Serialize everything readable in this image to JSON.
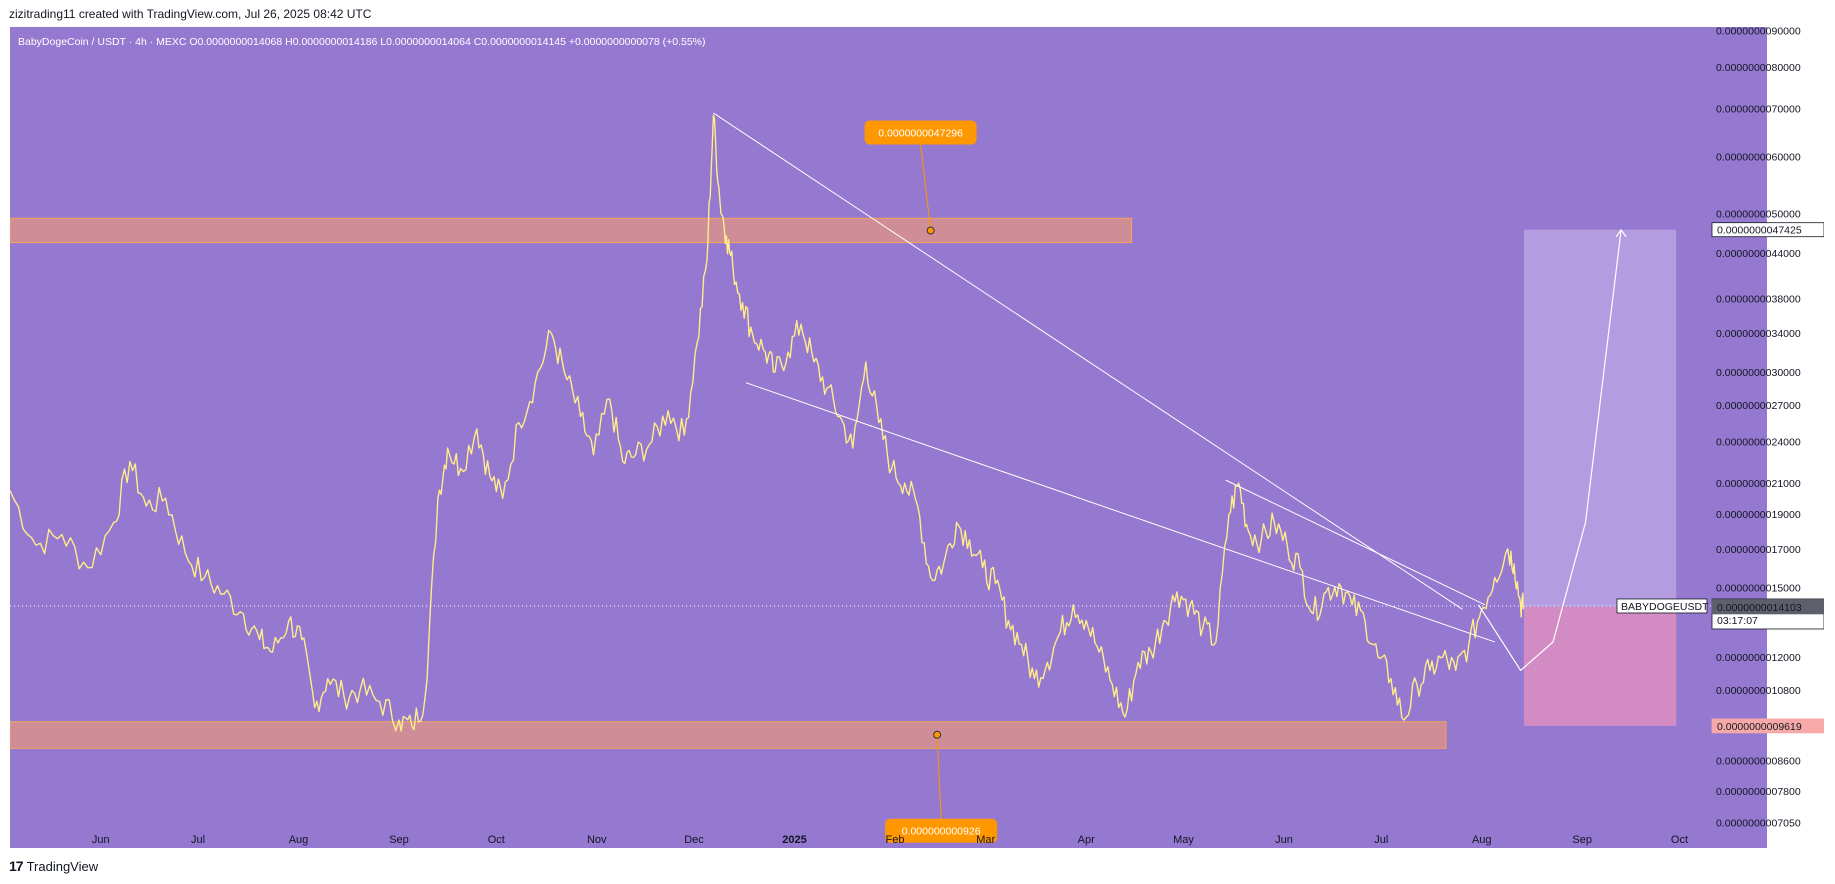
{
  "header": {
    "credit": "zizitrading11 created with TradingView.com, Jul 26, 2025 08:42 UTC"
  },
  "footer": {
    "logo_mark": "17",
    "logo_text": "TradingView"
  },
  "colors": {
    "background": "#9578d0",
    "candles": "#ffec8a",
    "zone_fill": "#e8977f",
    "zone_border": "#f5a35a",
    "target_fill": "#b8a3e3",
    "stop_fill": "#de8fc1",
    "callout_bg": "#ff9800",
    "trendline": "#ffffff"
  },
  "chart_data": {
    "type": "line",
    "title": "BabyDogeCoin / USDT · 4h · MEXC",
    "legend": "BabyDogeCoin / USDT · 4h · MEXC  O0.0000000014068  H0.0000000014186  L0.0000000014064  C0.0000000014145  +0.0000000000078 (+0.55%)",
    "ohlc": {
      "open": "0.0000000014068",
      "high": "0.0000000014186",
      "low": "0.0000000014064",
      "close": "0.0000000014145",
      "change": "+0.0000000000078",
      "change_pct": "+0.55%"
    },
    "scale": "log",
    "ylim": [
      6.95e-10,
      9.1e-09
    ],
    "y_ticks": [
      "0.0000000090000",
      "0.0000000080000",
      "0.0000000070000",
      "0.0000000060000",
      "0.0000000050000",
      "0.0000000044000",
      "0.0000000038000",
      "0.0000000034000",
      "0.0000000030000",
      "0.0000000027000",
      "0.0000000024000",
      "0.0000000021000",
      "0.0000000019000",
      "0.0000000017000",
      "0.0000000015000",
      "0.0000000012000",
      "0.0000000010800",
      "0.0000000008600",
      "0.0000000007800",
      "0.0000000007050"
    ],
    "y_tick_values": [
      9e-09,
      8e-09,
      7e-09,
      6e-09,
      5e-09,
      4.4e-09,
      3.8e-09,
      3.4e-09,
      3e-09,
      2.7e-09,
      2.4e-09,
      2.1e-09,
      1.9e-09,
      1.7e-09,
      1.5e-09,
      1.2e-09,
      1.08e-09,
      8.6e-10,
      7.8e-10,
      7.05e-10
    ],
    "x_ticks": [
      "Jun",
      "Jul",
      "Aug",
      "Sep",
      "Oct",
      "Nov",
      "Dec",
      "2025",
      "Feb",
      "Mar",
      "Apr",
      "May",
      "Jun",
      "Jul",
      "Aug",
      "Sep",
      "Oct"
    ],
    "x_tick_days": [
      0,
      30,
      61,
      92,
      122,
      153,
      183,
      214,
      245,
      273,
      304,
      334,
      365,
      395,
      426,
      457,
      487
    ],
    "xlim_days": [
      -28,
      514
    ],
    "series": [
      {
        "name": "BABYDOGEUSDT",
        "points": [
          [
            -28,
            2.05e-09
          ],
          [
            -20,
            1.72e-09
          ],
          [
            -12,
            1.78e-09
          ],
          [
            -4,
            1.6e-09
          ],
          [
            4,
            1.85e-09
          ],
          [
            9,
            2.25e-09
          ],
          [
            14,
            1.95e-09
          ],
          [
            20,
            2e-09
          ],
          [
            26,
            1.68e-09
          ],
          [
            32,
            1.55e-09
          ],
          [
            38,
            1.47e-09
          ],
          [
            44,
            1.38e-09
          ],
          [
            49,
            1.27e-09
          ],
          [
            53,
            1.22e-09
          ],
          [
            58,
            1.35e-09
          ],
          [
            62,
            1.27e-09
          ],
          [
            66,
            1.02e-09
          ],
          [
            70,
            1.12e-09
          ],
          [
            75,
            1.06e-09
          ],
          [
            80,
            1.08e-09
          ],
          [
            86,
            1.04e-09
          ],
          [
            92,
            9.8e-10
          ],
          [
            96,
            9.6e-10
          ],
          [
            100,
            1.05e-09
          ],
          [
            104,
            2e-09
          ],
          [
            107,
            2.35e-09
          ],
          [
            111,
            2.2e-09
          ],
          [
            116,
            2.5e-09
          ],
          [
            120,
            2.15e-09
          ],
          [
            124,
            2e-09
          ],
          [
            129,
            2.55e-09
          ],
          [
            134,
            2.9e-09
          ],
          [
            139,
            3.4e-09
          ],
          [
            143,
            3e-09
          ],
          [
            148,
            2.6e-09
          ],
          [
            152,
            2.3e-09
          ],
          [
            157,
            2.75e-09
          ],
          [
            161,
            2.25e-09
          ],
          [
            165,
            2.3e-09
          ],
          [
            170,
            2.4e-09
          ],
          [
            175,
            2.65e-09
          ],
          [
            180,
            2.45e-09
          ],
          [
            184,
            3.3e-09
          ],
          [
            187,
            4.3e-09
          ],
          [
            189,
            6.85e-09
          ],
          [
            191,
            5.2e-09
          ],
          [
            193,
            4.65e-09
          ],
          [
            195,
            4.2e-09
          ],
          [
            198,
            3.75e-09
          ],
          [
            201,
            3.4e-09
          ],
          [
            205,
            3.2e-09
          ],
          [
            208,
            3e-09
          ],
          [
            212,
            3.2e-09
          ],
          [
            216,
            3.5e-09
          ],
          [
            220,
            3.1e-09
          ],
          [
            224,
            2.85e-09
          ],
          [
            228,
            2.6e-09
          ],
          [
            232,
            2.35e-09
          ],
          [
            236,
            3.1e-09
          ],
          [
            240,
            2.55e-09
          ],
          [
            244,
            2.2e-09
          ],
          [
            248,
            2.1e-09
          ],
          [
            252,
            1.95e-09
          ],
          [
            256,
            1.55e-09
          ],
          [
            260,
            1.62e-09
          ],
          [
            264,
            1.85e-09
          ],
          [
            268,
            1.75e-09
          ],
          [
            272,
            1.6e-09
          ],
          [
            276,
            1.52e-09
          ],
          [
            280,
            1.35e-09
          ],
          [
            284,
            1.25e-09
          ],
          [
            288,
            1.12e-09
          ],
          [
            292,
            1.18e-09
          ],
          [
            296,
            1.3e-09
          ],
          [
            300,
            1.42e-09
          ],
          [
            304,
            1.35e-09
          ],
          [
            308,
            1.22e-09
          ],
          [
            312,
            1.1e-09
          ],
          [
            316,
            9.9e-10
          ],
          [
            320,
            1.18e-09
          ],
          [
            324,
            1.22e-09
          ],
          [
            328,
            1.35e-09
          ],
          [
            332,
            1.48e-09
          ],
          [
            336,
            1.42e-09
          ],
          [
            340,
            1.32e-09
          ],
          [
            344,
            1.26e-09
          ],
          [
            348,
            1.9e-09
          ],
          [
            351,
            2.1e-09
          ],
          [
            354,
            1.8e-09
          ],
          [
            358,
            1.75e-09
          ],
          [
            362,
            1.85e-09
          ],
          [
            366,
            1.72e-09
          ],
          [
            370,
            1.6e-09
          ],
          [
            374,
            1.38e-09
          ],
          [
            378,
            1.48e-09
          ],
          [
            382,
            1.52e-09
          ],
          [
            386,
            1.42e-09
          ],
          [
            390,
            1.35e-09
          ],
          [
            394,
            1.2e-09
          ],
          [
            398,
            1.12e-09
          ],
          [
            402,
            9.8e-10
          ],
          [
            406,
            1.1e-09
          ],
          [
            410,
            1.15e-09
          ],
          [
            414,
            1.2e-09
          ],
          [
            418,
            1.15e-09
          ],
          [
            422,
            1.25e-09
          ],
          [
            426,
            1.4e-09
          ],
          [
            430,
            1.55e-09
          ],
          [
            434,
            1.7e-09
          ],
          [
            436,
            1.62e-09
          ],
          [
            438,
            1.42e-09
          ],
          [
            439,
            1.4145e-09
          ]
        ]
      }
    ],
    "zones": [
      {
        "label": "resistance",
        "from_day": -28,
        "to_day": 318,
        "low": 4.55e-09,
        "high": 4.92e-09
      },
      {
        "label": "support",
        "from_day": -28,
        "to_day": 415,
        "low": 8.95e-10,
        "high": 9.75e-10
      }
    ],
    "trendlines": [
      {
        "points": [
          [
            189,
            6.9e-09
          ],
          [
            420,
            1.4e-09
          ]
        ]
      },
      {
        "points": [
          [
            199,
            2.9e-09
          ],
          [
            430,
            1.26e-09
          ]
        ]
      },
      {
        "points": [
          [
            347,
            2.12e-09
          ],
          [
            427,
            1.42e-09
          ]
        ]
      }
    ],
    "projection_arrow": {
      "points": [
        [
          425,
          1.42e-09
        ],
        [
          438,
          1.15e-09
        ],
        [
          448,
          1.26e-09
        ],
        [
          458,
          1.85e-09
        ],
        [
          469,
          4.74e-09
        ]
      ]
    },
    "position": {
      "from_day": 439,
      "to_day": 486,
      "entry": 1.4103e-09,
      "target": 4.7425e-09,
      "stop": 9.619e-10
    },
    "annotations": [
      {
        "text": "0.0000000047296",
        "anchor_day": 256,
        "anchor_value": 4.73e-09,
        "callout": "top"
      },
      {
        "text": "0.000000000926",
        "anchor_day": 258,
        "anchor_value": 9.35e-10,
        "callout": "bottom"
      }
    ],
    "price_tags": {
      "target": "0.0000000047425",
      "last_symbol": "BABYDOGEUSDT",
      "last": "0.0000000014145",
      "countdown": "03:17:07",
      "entry": "0.0000000014103",
      "stop": "0.0000000009619"
    },
    "grid": false
  }
}
